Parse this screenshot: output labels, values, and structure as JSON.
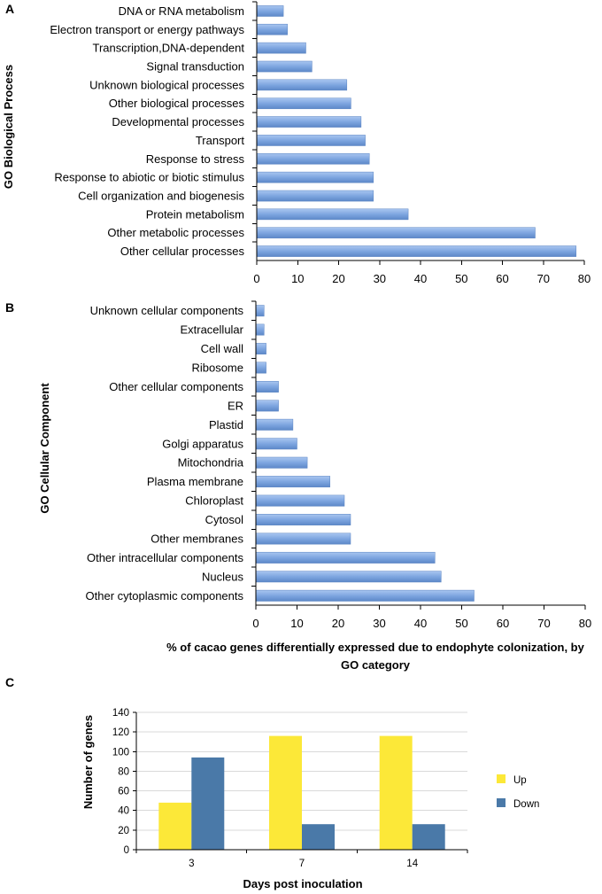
{
  "chart_data": [
    {
      "panel": "A",
      "type": "bar",
      "orientation": "horizontal",
      "ylabel": "GO Biological Process",
      "categories": [
        "DNA or RNA metabolism",
        "Electron transport or energy pathways",
        "Transcription,DNA-dependent",
        "Signal transduction",
        "Unknown biological processes",
        "Other biological processes",
        "Developmental processes",
        "Transport",
        "Response to stress",
        "Response to abiotic or biotic stimulus",
        "Cell organization and biogenesis",
        "Protein metabolism",
        "Other metabolic processes",
        "Other cellular processes"
      ],
      "values": [
        6.5,
        7.5,
        12,
        13.5,
        22,
        23,
        25.5,
        26.5,
        27.5,
        28.5,
        28.5,
        37,
        68,
        78
      ],
      "xlim": [
        0,
        80
      ],
      "xticks": [
        0,
        10,
        20,
        30,
        40,
        50,
        60,
        70,
        80
      ],
      "bar_color": "#7ea6e0"
    },
    {
      "panel": "B",
      "type": "bar",
      "orientation": "horizontal",
      "ylabel": "GO Cellular Component",
      "xlabel": "% of cacao genes differentially expressed due to endophyte colonization, by GO category",
      "categories": [
        "Unknown cellular components",
        "Extracellular",
        "Cell wall",
        "Ribosome",
        "Other cellular components",
        "ER",
        "Plastid",
        "Golgi apparatus",
        "Mitochondria",
        "Plasma membrane",
        "Chloroplast",
        "Cytosol",
        "Other membranes",
        "Other intracellular components",
        "Nucleus",
        "Other cytoplasmic components"
      ],
      "values": [
        2,
        2,
        2.5,
        2.5,
        5.5,
        5.5,
        9,
        10,
        12.5,
        18,
        21.5,
        23,
        23,
        43.5,
        45,
        53
      ],
      "xlim": [
        0,
        80
      ],
      "xticks": [
        0,
        10,
        20,
        30,
        40,
        50,
        60,
        70,
        80
      ],
      "bar_color": "#7ea6e0"
    },
    {
      "panel": "C",
      "type": "bar",
      "orientation": "vertical",
      "ylabel": "Number of genes",
      "xlabel": "Days post inoculation",
      "categories": [
        "3",
        "7",
        "14"
      ],
      "series": [
        {
          "name": "Up",
          "values": [
            48,
            116,
            116
          ],
          "color": "#fce838"
        },
        {
          "name": "Down",
          "values": [
            94,
            26,
            26
          ],
          "color": "#4a79a8"
        }
      ],
      "ylim": [
        0,
        140
      ],
      "yticks": [
        0,
        20,
        40,
        60,
        80,
        100,
        120,
        140
      ],
      "grid": true,
      "legend": "right"
    }
  ]
}
